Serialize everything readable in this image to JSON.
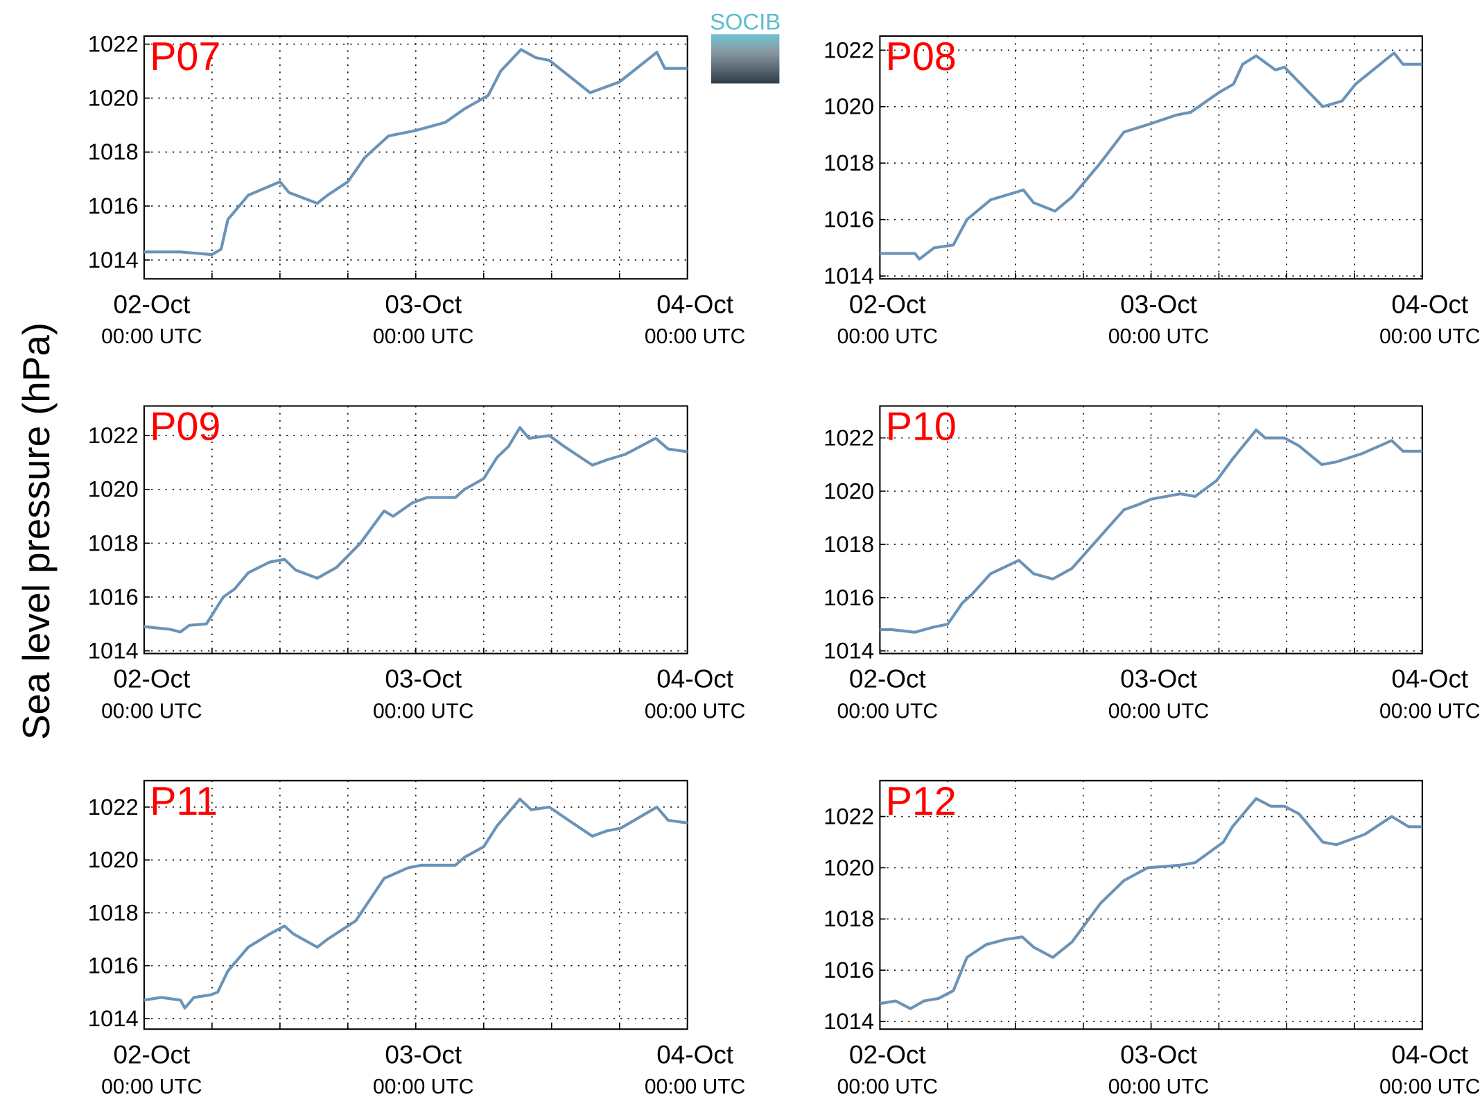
{
  "ylabel": "Sea level pressure (hPa)",
  "logo": "SOCIB",
  "chart_data": [
    {
      "type": "line",
      "title": "P07",
      "xlim": [
        0,
        48
      ],
      "ylim": [
        1013.3,
        1022.3
      ],
      "grid": true,
      "xticks": [
        {
          "value": 0,
          "label": "02-Oct",
          "sublabel": "00:00 UTC"
        },
        {
          "value": 6,
          "label": null
        },
        {
          "value": 12,
          "label": null
        },
        {
          "value": 18,
          "label": null
        },
        {
          "value": 24,
          "label": "03-Oct",
          "sublabel": "00:00 UTC"
        },
        {
          "value": 30,
          "label": null
        },
        {
          "value": 36,
          "label": null
        },
        {
          "value": 42,
          "label": null
        },
        {
          "value": 48,
          "label": "04-Oct",
          "sublabel": "00:00 UTC"
        }
      ],
      "yticks": [
        1014,
        1016,
        1018,
        1020,
        1022
      ],
      "series": [
        {
          "color": "#6a93b8",
          "x": [
            0,
            3.2,
            6,
            6.8,
            7.4,
            9.2,
            12,
            12.8,
            15.3,
            16.2,
            18,
            19.5,
            21.6,
            24,
            26.6,
            28.3,
            30.4,
            31.5,
            33.3,
            34.6,
            35.8,
            39.4,
            42,
            45.3,
            46,
            48
          ],
          "values": [
            1014.3,
            1014.3,
            1014.2,
            1014.4,
            1015.5,
            1016.4,
            1016.9,
            1016.5,
            1016.1,
            1016.4,
            1016.9,
            1017.8,
            1018.6,
            1018.8,
            1019.1,
            1019.6,
            1020.1,
            1021.0,
            1021.8,
            1021.5,
            1021.4,
            1020.2,
            1020.6,
            1021.7,
            1021.1,
            1021.1
          ]
        }
      ]
    },
    {
      "type": "line",
      "title": "P08",
      "xlim": [
        0,
        48
      ],
      "ylim": [
        1013.9,
        1022.5
      ],
      "grid": true,
      "xticks": [
        {
          "value": 0,
          "label": "02-Oct",
          "sublabel": "00:00 UTC"
        },
        {
          "value": 6,
          "label": null
        },
        {
          "value": 12,
          "label": null
        },
        {
          "value": 18,
          "label": null
        },
        {
          "value": 24,
          "label": "03-Oct",
          "sublabel": "00:00 UTC"
        },
        {
          "value": 30,
          "label": null
        },
        {
          "value": 36,
          "label": null
        },
        {
          "value": 42,
          "label": null
        },
        {
          "value": 48,
          "label": "04-Oct",
          "sublabel": "00:00 UTC"
        }
      ],
      "yticks": [
        1014,
        1016,
        1018,
        1020,
        1022
      ],
      "series": [
        {
          "color": "#6a93b8",
          "x": [
            0,
            3.1,
            3.5,
            4.8,
            6.5,
            7.7,
            9.8,
            12.3,
            12.7,
            13.6,
            15.5,
            17,
            19.5,
            21.6,
            24,
            26.2,
            27.5,
            30,
            31.3,
            32.1,
            33.3,
            35,
            35.8,
            39.2,
            40.9,
            42.1,
            45.5,
            46.3,
            48
          ],
          "values": [
            1014.8,
            1014.8,
            1014.6,
            1015.0,
            1015.1,
            1016.0,
            1016.7,
            1017.0,
            1017.05,
            1016.6,
            1016.3,
            1016.8,
            1018.0,
            1019.1,
            1019.4,
            1019.7,
            1019.8,
            1020.5,
            1020.8,
            1021.5,
            1021.8,
            1021.3,
            1021.4,
            1020.0,
            1020.2,
            1020.8,
            1021.9,
            1021.5,
            1021.5
          ]
        }
      ]
    },
    {
      "type": "line",
      "title": "P09",
      "xlim": [
        0,
        48
      ],
      "ylim": [
        1013.9,
        1023.1
      ],
      "grid": true,
      "xticks": [
        {
          "value": 0,
          "label": "02-Oct",
          "sublabel": "00:00 UTC"
        },
        {
          "value": 6,
          "label": null
        },
        {
          "value": 12,
          "label": null
        },
        {
          "value": 18,
          "label": null
        },
        {
          "value": 24,
          "label": "03-Oct",
          "sublabel": "00:00 UTC"
        },
        {
          "value": 30,
          "label": null
        },
        {
          "value": 36,
          "label": null
        },
        {
          "value": 42,
          "label": null
        },
        {
          "value": 48,
          "label": "04-Oct",
          "sublabel": "00:00 UTC"
        }
      ],
      "yticks": [
        1014,
        1016,
        1018,
        1020,
        1022
      ],
      "series": [
        {
          "color": "#6a93b8",
          "x": [
            0,
            2.3,
            3.2,
            4,
            5.5,
            7,
            8,
            9.2,
            11.1,
            12.4,
            13.4,
            15.3,
            17,
            19.1,
            21.2,
            22,
            23.7,
            25,
            27.5,
            28.3,
            30,
            31.2,
            32.2,
            33.2,
            34,
            35.8,
            37.1,
            39.6,
            40.9,
            42.5,
            45.2,
            46.3,
            48
          ],
          "values": [
            1014.9,
            1014.8,
            1014.7,
            1014.95,
            1015.0,
            1016.0,
            1016.3,
            1016.9,
            1017.3,
            1017.4,
            1017.0,
            1016.7,
            1017.1,
            1018.0,
            1019.2,
            1019.0,
            1019.5,
            1019.7,
            1019.7,
            1020.0,
            1020.4,
            1021.2,
            1021.6,
            1022.3,
            1021.9,
            1022.0,
            1021.6,
            1020.9,
            1021.1,
            1021.3,
            1021.9,
            1021.5,
            1021.4
          ]
        }
      ]
    },
    {
      "type": "line",
      "title": "P10",
      "xlim": [
        0,
        48
      ],
      "ylim": [
        1013.9,
        1023.2
      ],
      "grid": true,
      "xticks": [
        {
          "value": 0,
          "label": "02-Oct",
          "sublabel": "00:00 UTC"
        },
        {
          "value": 6,
          "label": null
        },
        {
          "value": 12,
          "label": null
        },
        {
          "value": 18,
          "label": null
        },
        {
          "value": 24,
          "label": "03-Oct",
          "sublabel": "00:00 UTC"
        },
        {
          "value": 30,
          "label": null
        },
        {
          "value": 36,
          "label": null
        },
        {
          "value": 42,
          "label": null
        },
        {
          "value": 48,
          "label": "04-Oct",
          "sublabel": "00:00 UTC"
        }
      ],
      "yticks": [
        1014,
        1016,
        1018,
        1020,
        1022
      ],
      "series": [
        {
          "color": "#6a93b8",
          "x": [
            0,
            1,
            3.1,
            4.8,
            6,
            7.3,
            8.1,
            9.8,
            12.3,
            13.6,
            15.3,
            17,
            19.5,
            21.6,
            22.9,
            24,
            26.6,
            27.9,
            29.8,
            31.2,
            33.3,
            34.1,
            35.8,
            37.1,
            39.1,
            40.4,
            42.6,
            45.3,
            46.3,
            48
          ],
          "values": [
            1014.8,
            1014.8,
            1014.7,
            1014.9,
            1015.0,
            1015.8,
            1016.1,
            1016.9,
            1017.4,
            1016.9,
            1016.7,
            1017.1,
            1018.3,
            1019.3,
            1019.5,
            1019.7,
            1019.9,
            1019.8,
            1020.4,
            1021.2,
            1022.3,
            1022.0,
            1022.0,
            1021.7,
            1021.0,
            1021.1,
            1021.4,
            1021.9,
            1021.5,
            1021.5
          ]
        }
      ]
    },
    {
      "type": "line",
      "title": "P11",
      "xlim": [
        0,
        48
      ],
      "ylim": [
        1013.6,
        1023.0
      ],
      "grid": true,
      "xticks": [
        {
          "value": 0,
          "label": "02-Oct",
          "sublabel": "00:00 UTC"
        },
        {
          "value": 6,
          "label": null
        },
        {
          "value": 12,
          "label": null
        },
        {
          "value": 18,
          "label": null
        },
        {
          "value": 24,
          "label": "03-Oct",
          "sublabel": "00:00 UTC"
        },
        {
          "value": 30,
          "label": null
        },
        {
          "value": 36,
          "label": null
        },
        {
          "value": 42,
          "label": null
        },
        {
          "value": 48,
          "label": "04-Oct",
          "sublabel": "00:00 UTC"
        }
      ],
      "yticks": [
        1014,
        1016,
        1018,
        1020,
        1022
      ],
      "series": [
        {
          "color": "#6a93b8",
          "x": [
            0,
            1.5,
            3.2,
            3.6,
            4.4,
            5.9,
            6.5,
            7.4,
            9.2,
            11.1,
            12.4,
            13.2,
            15.3,
            16.2,
            18.7,
            21.2,
            23.3,
            24.5,
            27.5,
            28.3,
            30,
            31.2,
            33.2,
            34.2,
            35.8,
            37.5,
            39.6,
            40.9,
            42.1,
            45.3,
            46.3,
            48
          ],
          "values": [
            1014.7,
            1014.8,
            1014.7,
            1014.4,
            1014.8,
            1014.9,
            1015.0,
            1015.8,
            1016.7,
            1017.2,
            1017.5,
            1017.2,
            1016.7,
            1017.0,
            1017.7,
            1019.3,
            1019.7,
            1019.8,
            1019.8,
            1020.1,
            1020.5,
            1021.3,
            1022.3,
            1021.9,
            1022.0,
            1021.5,
            1020.9,
            1021.1,
            1021.2,
            1022.0,
            1021.5,
            1021.4
          ]
        }
      ]
    },
    {
      "type": "line",
      "title": "P12",
      "xlim": [
        0,
        48
      ],
      "ylim": [
        1013.7,
        1023.4
      ],
      "grid": true,
      "xticks": [
        {
          "value": 0,
          "label": "02-Oct",
          "sublabel": "00:00 UTC"
        },
        {
          "value": 6,
          "label": null
        },
        {
          "value": 12,
          "label": null
        },
        {
          "value": 18,
          "label": null
        },
        {
          "value": 24,
          "label": "03-Oct",
          "sublabel": "00:00 UTC"
        },
        {
          "value": 30,
          "label": null
        },
        {
          "value": 36,
          "label": null
        },
        {
          "value": 42,
          "label": null
        },
        {
          "value": 48,
          "label": "04-Oct",
          "sublabel": "00:00 UTC"
        }
      ],
      "yticks": [
        1014,
        1016,
        1018,
        1020,
        1022
      ],
      "series": [
        {
          "color": "#6a93b8",
          "x": [
            0,
            1.4,
            2.7,
            3.9,
            5.2,
            6.5,
            7.7,
            9.4,
            11.1,
            12.6,
            13.6,
            15.3,
            17,
            19.5,
            21.6,
            23.7,
            26.6,
            27.9,
            30.4,
            31.2,
            33.3,
            34.6,
            35.8,
            37.1,
            39.2,
            40.4,
            42.9,
            45.3,
            46.8,
            48
          ],
          "values": [
            1014.7,
            1014.8,
            1014.5,
            1014.8,
            1014.9,
            1015.2,
            1016.5,
            1017.0,
            1017.2,
            1017.3,
            1016.9,
            1016.5,
            1017.1,
            1018.6,
            1019.5,
            1020.0,
            1020.1,
            1020.2,
            1021.0,
            1021.6,
            1022.7,
            1022.4,
            1022.4,
            1022.1,
            1021.0,
            1020.9,
            1021.3,
            1022.0,
            1021.6,
            1021.6
          ]
        }
      ]
    }
  ]
}
